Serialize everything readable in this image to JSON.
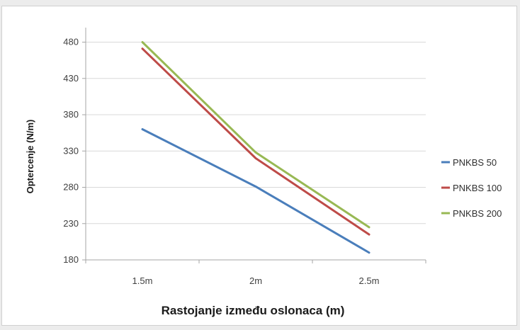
{
  "chart_data": {
    "type": "line",
    "title": "",
    "xlabel": "Rastojanje između oslonaca (m)",
    "ylabel": "Optercenje (N/m)",
    "categories": [
      "1.5m",
      "2m",
      "2.5m"
    ],
    "ylim": [
      180,
      500
    ],
    "yticks": [
      180,
      230,
      280,
      330,
      380,
      430,
      480
    ],
    "grid": true,
    "legend_position": "right",
    "series": [
      {
        "name": "PNKBS 50",
        "color": "#4a7ebb",
        "values": [
          360,
          281,
          190
        ]
      },
      {
        "name": "PNKBS 100",
        "color": "#be4b48",
        "values": [
          471,
          320,
          215
        ]
      },
      {
        "name": "PNKBS 200",
        "color": "#98b954",
        "values": [
          480,
          328,
          225
        ]
      }
    ]
  }
}
